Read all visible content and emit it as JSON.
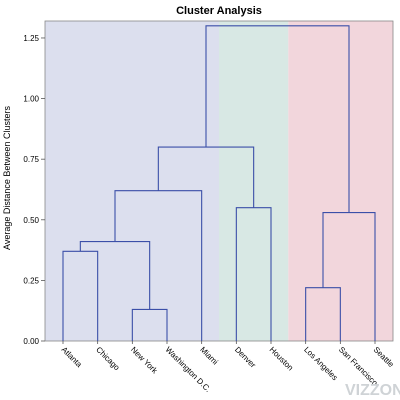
{
  "chart_data": {
    "type": "dendrogram",
    "title": "Cluster Analysis",
    "ylabel": "Average Distance Between Clusters",
    "ylim": [
      0,
      1.32
    ],
    "yticks": [
      "0.00",
      "0.25",
      "0.50",
      "0.75",
      "1.00",
      "1.25"
    ],
    "ytick_values": [
      0,
      0.25,
      0.5,
      0.75,
      1.0,
      1.25
    ],
    "leaves": [
      "Atlanta",
      "Chicago",
      "New York",
      "Washington D.C.",
      "Miami",
      "Denver",
      "Houston",
      "Los Angeles",
      "San Francisco",
      "Seattle"
    ],
    "merges": [
      {
        "left": "Atlanta",
        "right": "Chicago",
        "height": 0.37
      },
      {
        "left": "New York",
        "right": "Washington D.C.",
        "height": 0.13
      },
      {
        "left": "Atlanta+Chicago",
        "right": "New York+Washington D.C.",
        "height": 0.41
      },
      {
        "left": "Atlanta+Chicago+New York+Washington D.C.",
        "right": "Miami",
        "height": 0.62
      },
      {
        "left": "Denver",
        "right": "Houston",
        "height": 0.55
      },
      {
        "left": "East cluster",
        "right": "Denver+Houston",
        "height": 0.8
      },
      {
        "left": "Los Angeles",
        "right": "San Francisco",
        "height": 0.22
      },
      {
        "left": "Los Angeles+San Francisco",
        "right": "Seattle",
        "height": 0.53
      },
      {
        "left": "East+Central",
        "right": "West",
        "height": 1.3
      }
    ],
    "cluster_regions": [
      {
        "leaves": [
          "Atlanta",
          "Chicago",
          "New York",
          "Washington D.C.",
          "Miami"
        ],
        "color": "#dcdfee"
      },
      {
        "leaves": [
          "Denver",
          "Houston"
        ],
        "color": "#d8e8e4"
      },
      {
        "leaves": [
          "Los Angeles",
          "San Francisco",
          "Seattle"
        ],
        "color": "#f2d6dc"
      }
    ],
    "line_color": "#3b4fa8"
  },
  "watermark": "VIZZONE"
}
